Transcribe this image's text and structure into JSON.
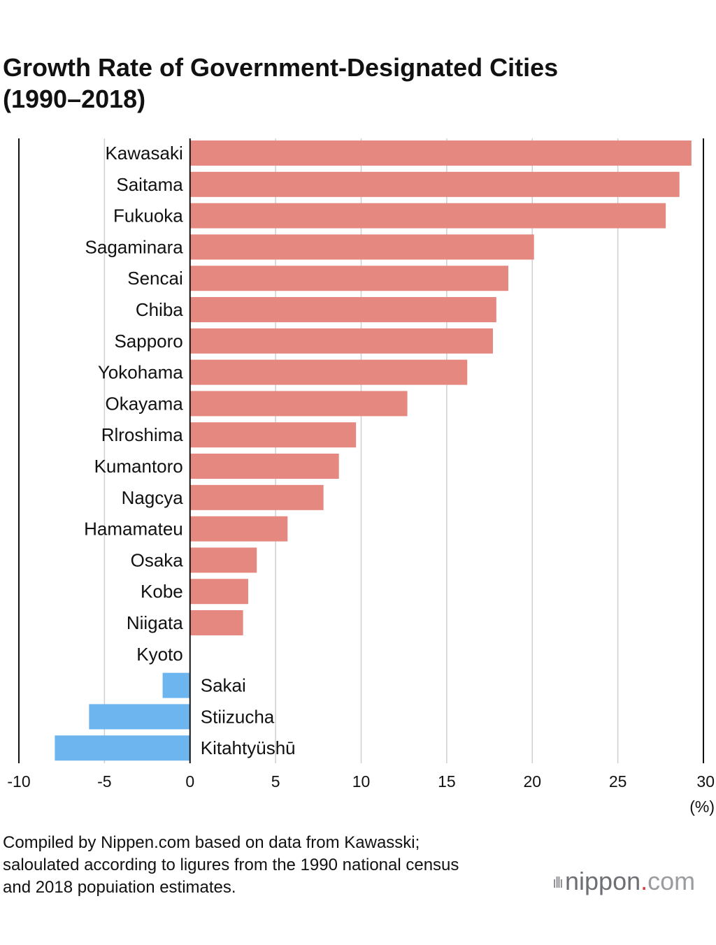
{
  "title": {
    "line1": "Growth Rate of Government-Designated Cities",
    "line2": "(1990–2018)"
  },
  "chart_data": {
    "type": "bar",
    "orientation": "horizontal",
    "title": "Growth Rate of Government-Designated Cities (1990–2018)",
    "unit_label": "(%)",
    "xlim": [
      -10,
      30
    ],
    "x_ticks": [
      "-10",
      "-5",
      "0",
      "5",
      "10",
      "15",
      "20",
      "25",
      "30"
    ],
    "grid": true,
    "categories": [
      "Kawasaki",
      "Saitama",
      "Fukuoka",
      "Sagaminara",
      "Sencai",
      "Chiba",
      "Sapporo",
      "Yokohama",
      "Okayama",
      "Rlroshima",
      "Kumantoro",
      "Nagcya",
      "Hamamateu",
      "Osaka",
      "Kobe",
      "Niigata",
      "Kyoto",
      "Sakai",
      "Stiizucha",
      "Kitahtyüshū"
    ],
    "values": [
      29.3,
      28.6,
      27.8,
      20.1,
      18.6,
      17.9,
      17.7,
      16.2,
      12.7,
      9.7,
      8.7,
      7.8,
      5.7,
      3.9,
      3.4,
      3.1,
      0.0,
      -1.6,
      -5.9,
      -7.9
    ],
    "colors": {
      "positive": "#e58880",
      "negative": "#6db5ee"
    }
  },
  "footer": {
    "line1": "Compiled by Nippen.com based on data from Kawasski;",
    "line2": "saloulated according to ligures from the 1990 national census",
    "line3": "and 2018 popuiation estimates."
  },
  "brand": {
    "waves": "ıllı",
    "name": "nippon",
    "dot": ".",
    "com": "com"
  }
}
